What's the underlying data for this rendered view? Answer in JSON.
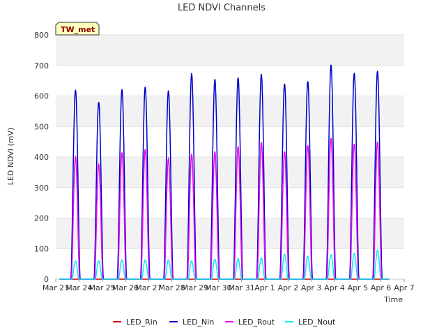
{
  "chart_data": {
    "type": "line",
    "title": "LED NDVI Channels",
    "xlabel": "Time",
    "ylabel": "LED NDVI (mV)",
    "ylim": [
      0,
      800
    ],
    "yticks": [
      0,
      100,
      200,
      300,
      400,
      500,
      600,
      700,
      800
    ],
    "xlim": [
      0,
      15
    ],
    "xticks": [
      {
        "x": 0,
        "label": "Mar 23"
      },
      {
        "x": 1,
        "label": "Mar 24"
      },
      {
        "x": 2,
        "label": "Mar 25"
      },
      {
        "x": 3,
        "label": "Mar 26"
      },
      {
        "x": 4,
        "label": "Mar 27"
      },
      {
        "x": 5,
        "label": "Mar 28"
      },
      {
        "x": 6,
        "label": "Mar 29"
      },
      {
        "x": 7,
        "label": "Mar 30"
      },
      {
        "x": 8,
        "label": "Mar 31"
      },
      {
        "x": 9,
        "label": "Apr 1"
      },
      {
        "x": 10,
        "label": "Apr 2"
      },
      {
        "x": 11,
        "label": "Apr 3"
      },
      {
        "x": 12,
        "label": "Apr 4"
      },
      {
        "x": 13,
        "label": "Apr 5"
      },
      {
        "x": 14,
        "label": "Apr 6"
      },
      {
        "x": 15,
        "label": "Apr 7"
      }
    ],
    "grid": true,
    "background_bands": "alternating light gray",
    "legend_position": "bottom",
    "badge": "TW_met",
    "series": [
      {
        "name": "LED_Rin",
        "color": "#cc0000",
        "daily_peaks": [
          0,
          0,
          0,
          0,
          0,
          0,
          0,
          0,
          0,
          0,
          0,
          0,
          0,
          0
        ]
      },
      {
        "name": "LED_Nin",
        "color": "#0000cc",
        "daily_peaks": [
          620,
          580,
          622,
          630,
          618,
          675,
          655,
          660,
          672,
          640,
          648,
          702,
          675,
          682
        ]
      },
      {
        "name": "LED_Rout",
        "color": "#ee00ee",
        "daily_peaks": [
          400,
          375,
          415,
          425,
          395,
          410,
          418,
          435,
          448,
          418,
          438,
          462,
          443,
          450
        ]
      },
      {
        "name": "LED_Nout",
        "color": "#00eeee",
        "daily_peaks": [
          60,
          60,
          63,
          63,
          63,
          60,
          65,
          68,
          70,
          82,
          75,
          80,
          85,
          95
        ]
      }
    ]
  }
}
